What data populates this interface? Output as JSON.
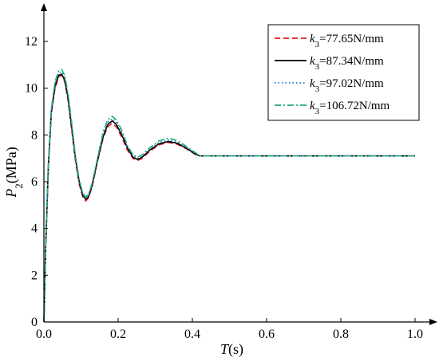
{
  "chart_data": {
    "type": "line",
    "xlabel": {
      "italic": "T",
      "rest": "(s)"
    },
    "ylabel": {
      "italic": "P",
      "sub": "2",
      "rest": "(MPa)"
    },
    "xlim": [
      0,
      1.0
    ],
    "ylim": [
      0,
      13.5
    ],
    "x_ticks": [
      0.0,
      0.2,
      0.4,
      0.6,
      0.8,
      1.0
    ],
    "x_tick_labels": [
      "0.0",
      "0.2",
      "0.4",
      "0.6",
      "0.8",
      "1.0"
    ],
    "y_ticks": [
      0,
      2,
      4,
      6,
      8,
      10,
      12
    ],
    "y_tick_labels": [
      "0",
      "2",
      "4",
      "6",
      "8",
      "10",
      "12"
    ],
    "grid": false,
    "legend_position": "top-right",
    "series": [
      {
        "name": "k3=77.65N/mm",
        "legend": {
          "k": "k",
          "sub": "3",
          "text": "=77.65N/mm"
        },
        "color": "#e8171b",
        "dash": "dashed",
        "points": [
          [
            0,
            0
          ],
          [
            0.005,
            3.2
          ],
          [
            0.012,
            6.6
          ],
          [
            0.02,
            8.9
          ],
          [
            0.03,
            10.0
          ],
          [
            0.04,
            10.5
          ],
          [
            0.048,
            10.55
          ],
          [
            0.056,
            10.3
          ],
          [
            0.065,
            9.5
          ],
          [
            0.075,
            8.2
          ],
          [
            0.085,
            6.9
          ],
          [
            0.095,
            5.9
          ],
          [
            0.105,
            5.35
          ],
          [
            0.113,
            5.18
          ],
          [
            0.12,
            5.3
          ],
          [
            0.13,
            5.8
          ],
          [
            0.145,
            6.9
          ],
          [
            0.16,
            7.9
          ],
          [
            0.172,
            8.35
          ],
          [
            0.184,
            8.5
          ],
          [
            0.195,
            8.35
          ],
          [
            0.21,
            7.9
          ],
          [
            0.225,
            7.35
          ],
          [
            0.24,
            7.0
          ],
          [
            0.252,
            6.9
          ],
          [
            0.265,
            7.0
          ],
          [
            0.285,
            7.3
          ],
          [
            0.31,
            7.58
          ],
          [
            0.335,
            7.68
          ],
          [
            0.36,
            7.6
          ],
          [
            0.385,
            7.4
          ],
          [
            0.41,
            7.15
          ],
          [
            0.42,
            7.1
          ],
          [
            0.5,
            7.1
          ],
          [
            1.0,
            7.1
          ]
        ]
      },
      {
        "name": "k3=87.34N/mm",
        "legend": {
          "k": "k",
          "sub": "3",
          "text": "=87.34N/mm"
        },
        "color": "#000000",
        "dash": "solid",
        "points": [
          [
            0,
            0
          ],
          [
            0.005,
            3.3
          ],
          [
            0.012,
            6.7
          ],
          [
            0.02,
            9.0
          ],
          [
            0.03,
            10.1
          ],
          [
            0.04,
            10.55
          ],
          [
            0.048,
            10.6
          ],
          [
            0.056,
            10.35
          ],
          [
            0.065,
            9.6
          ],
          [
            0.075,
            8.3
          ],
          [
            0.085,
            7.0
          ],
          [
            0.095,
            6.0
          ],
          [
            0.105,
            5.4
          ],
          [
            0.113,
            5.25
          ],
          [
            0.12,
            5.35
          ],
          [
            0.13,
            5.85
          ],
          [
            0.145,
            6.95
          ],
          [
            0.16,
            7.95
          ],
          [
            0.172,
            8.45
          ],
          [
            0.184,
            8.6
          ],
          [
            0.195,
            8.45
          ],
          [
            0.21,
            8.0
          ],
          [
            0.225,
            7.45
          ],
          [
            0.24,
            7.05
          ],
          [
            0.252,
            6.95
          ],
          [
            0.265,
            7.05
          ],
          [
            0.285,
            7.35
          ],
          [
            0.31,
            7.62
          ],
          [
            0.335,
            7.72
          ],
          [
            0.36,
            7.64
          ],
          [
            0.385,
            7.42
          ],
          [
            0.41,
            7.17
          ],
          [
            0.42,
            7.1
          ],
          [
            0.5,
            7.1
          ],
          [
            1.0,
            7.1
          ]
        ]
      },
      {
        "name": "k3=97.02N/mm",
        "legend": {
          "k": "k",
          "sub": "3",
          "text": "=97.02N/mm"
        },
        "color": "#1f77d0",
        "dash": "dotted",
        "points": [
          [
            0,
            0
          ],
          [
            0.005,
            3.35
          ],
          [
            0.012,
            6.75
          ],
          [
            0.02,
            9.05
          ],
          [
            0.03,
            10.2
          ],
          [
            0.04,
            10.65
          ],
          [
            0.048,
            10.7
          ],
          [
            0.056,
            10.45
          ],
          [
            0.065,
            9.7
          ],
          [
            0.075,
            8.4
          ],
          [
            0.085,
            7.05
          ],
          [
            0.095,
            6.05
          ],
          [
            0.105,
            5.45
          ],
          [
            0.113,
            5.3
          ],
          [
            0.12,
            5.4
          ],
          [
            0.13,
            5.9
          ],
          [
            0.145,
            7.0
          ],
          [
            0.16,
            8.05
          ],
          [
            0.172,
            8.55
          ],
          [
            0.184,
            8.7
          ],
          [
            0.195,
            8.55
          ],
          [
            0.21,
            8.1
          ],
          [
            0.225,
            7.5
          ],
          [
            0.24,
            7.1
          ],
          [
            0.252,
            7.0
          ],
          [
            0.265,
            7.1
          ],
          [
            0.285,
            7.4
          ],
          [
            0.31,
            7.68
          ],
          [
            0.335,
            7.78
          ],
          [
            0.36,
            7.7
          ],
          [
            0.385,
            7.46
          ],
          [
            0.41,
            7.2
          ],
          [
            0.42,
            7.1
          ],
          [
            0.5,
            7.1
          ],
          [
            1.0,
            7.1
          ]
        ]
      },
      {
        "name": "k3=106.72N/mm",
        "legend": {
          "k": "k",
          "sub": "3",
          "text": "=106.72N/mm"
        },
        "color": "#1fae7a",
        "dash": "dashdot",
        "points": [
          [
            0,
            0
          ],
          [
            0.005,
            3.4
          ],
          [
            0.012,
            6.8
          ],
          [
            0.02,
            9.1
          ],
          [
            0.03,
            10.3
          ],
          [
            0.04,
            10.75
          ],
          [
            0.048,
            10.8
          ],
          [
            0.056,
            10.55
          ],
          [
            0.065,
            9.8
          ],
          [
            0.075,
            8.5
          ],
          [
            0.085,
            7.1
          ],
          [
            0.095,
            6.1
          ],
          [
            0.105,
            5.5
          ],
          [
            0.113,
            5.35
          ],
          [
            0.12,
            5.45
          ],
          [
            0.13,
            5.95
          ],
          [
            0.145,
            7.05
          ],
          [
            0.16,
            8.15
          ],
          [
            0.172,
            8.65
          ],
          [
            0.184,
            8.8
          ],
          [
            0.195,
            8.65
          ],
          [
            0.21,
            8.2
          ],
          [
            0.225,
            7.55
          ],
          [
            0.24,
            7.15
          ],
          [
            0.252,
            7.05
          ],
          [
            0.265,
            7.15
          ],
          [
            0.285,
            7.45
          ],
          [
            0.31,
            7.75
          ],
          [
            0.335,
            7.86
          ],
          [
            0.36,
            7.76
          ],
          [
            0.385,
            7.5
          ],
          [
            0.41,
            7.22
          ],
          [
            0.42,
            7.1
          ],
          [
            0.5,
            7.1
          ],
          [
            1.0,
            7.1
          ]
        ]
      }
    ]
  }
}
